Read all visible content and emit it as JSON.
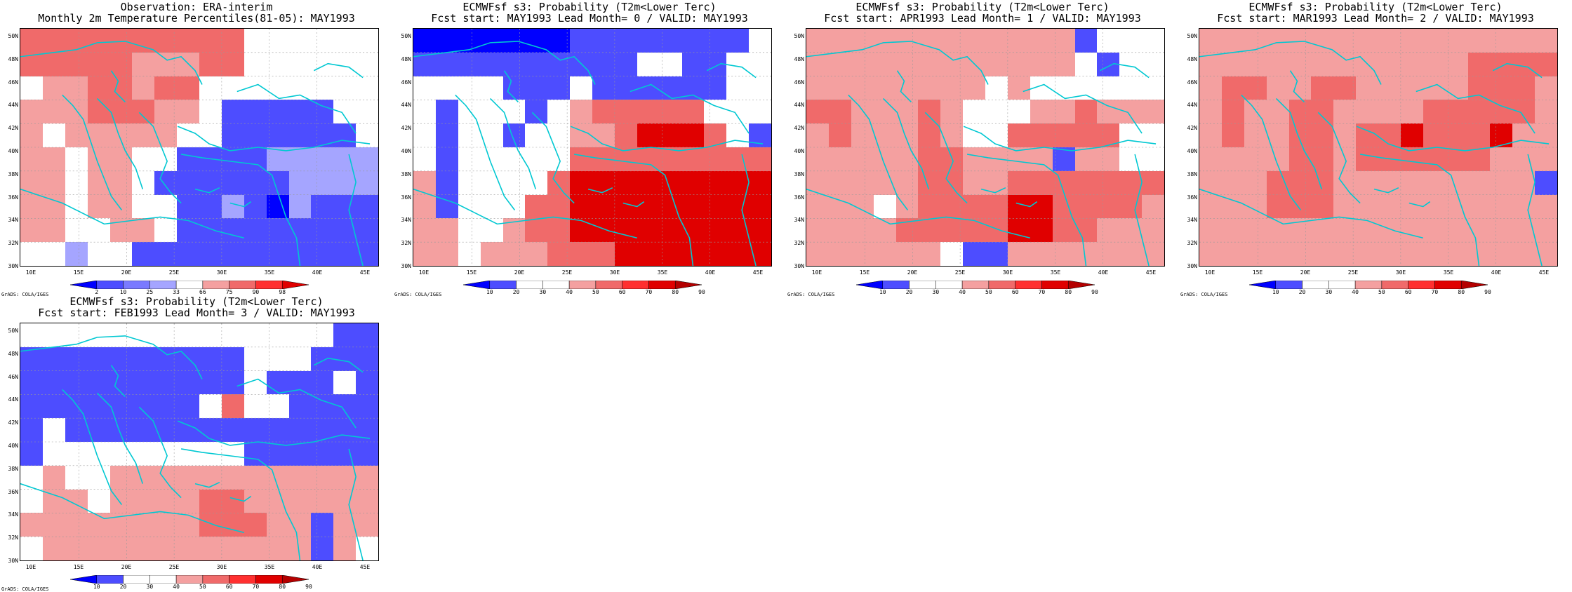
{
  "colors": {
    "blue3": "#0000ff",
    "blue2": "#4d4dff",
    "blue1": "#a5a5ff",
    "red1": "#f4a0a0",
    "red2": "#f06a6a",
    "red3": "#ff3030",
    "red4": "#e00000",
    "red5": "#b40000",
    "coast": "#00c8d2",
    "white": "#ffffff"
  },
  "axes": {
    "lat_labels": [
      "50N",
      "48N",
      "46N",
      "44N",
      "42N",
      "40N",
      "38N",
      "36N",
      "34N",
      "32N",
      "30N"
    ],
    "lon_labels": [
      "10E",
      "15E",
      "20E",
      "25E",
      "30E",
      "35E",
      "40E",
      "45E"
    ]
  },
  "footer": "GrADS: COLA/IGES",
  "panels": [
    {
      "title1": "Observation: ERA-interim",
      "title2": "Monthly 2m Temperature Percentiles(81-05): MAY1993",
      "colorbar": [
        "2",
        "10",
        "25",
        "33",
        "66",
        "75",
        "90",
        "98"
      ],
      "colorbar_colors": [
        "#0000ff",
        "#4d4dff",
        "#7a7aff",
        "#a5a5ff",
        "#ffffff",
        "#f4a0a0",
        "#f06a6a",
        "#ff3030",
        "#e00000"
      ],
      "grid_rows": [
        "RRRRRRRRRR000000",
        "RRRRRrrrRR000000",
        "0rrRRrRR00000000",
        "rrrRRRrr0BBBBB00",
        "r0rrrrr00BBBBBB0",
        "rr0rr00BBBBbbbbb",
        "rr0rr0BBBBBBbbbb",
        "rr0rr00BBbBXbBBB",
        "rr00rr0BBBBBBBBB",
        "00b00BBBBBBBBBBB"
      ]
    },
    {
      "title1": "ECMWFsf s3: Probability (T2m<Lower Terc)",
      "title2": "Fcst start: MAY1993  Lead Month= 0 / VALID: MAY1993",
      "colorbar": [
        "10",
        "20",
        "30",
        "40",
        "50",
        "60",
        "70",
        "80",
        "90"
      ],
      "colorbar_colors": [
        "#0000ff",
        "#4d4dff",
        "#ffffff",
        "#ffffff",
        "#f4a0a0",
        "#f06a6a",
        "#ff3030",
        "#e00000",
        "#b40000"
      ],
      "grid_rows": [
        "XXXXXXXBBBBBBBB0",
        "BBBBBBBBBB00BB00",
        "0000BBB0BBBBBB00",
        "0B000B0rRRRRR000",
        "0B00B00rrRDDDR0B",
        "0B00000RRRRRRRRR",
        "rB0000RDDDDDDDDD",
        "rB000RRDDDDDDDDD",
        "rr00rRRDDDDDDDDD",
        "rr0rrrRRRDDDDDDD"
      ]
    },
    {
      "title1": "ECMWFsf s3: Probability (T2m<Lower Terc)",
      "title2": "Fcst start: APR1993  Lead Month= 1 / VALID: MAY1993",
      "colorbar": [
        "10",
        "20",
        "30",
        "40",
        "50",
        "60",
        "70",
        "80",
        "90"
      ],
      "colorbar_colors": [
        "#0000ff",
        "#4d4dff",
        "#ffffff",
        "#ffffff",
        "#f4a0a0",
        "#f06a6a",
        "#ff3030",
        "#e00000",
        "#b40000"
      ],
      "grid_rows": [
        "rrrrrrrrrrrrB000",
        "rrrrrrrrrrrr0B00",
        "rrrrrrrr0r000000",
        "RRrrrRr000rrRrrr",
        "rRrrrRr00RRRRR00",
        "rrrrrRRrrrrBrr00",
        "rrrrrRRrrRRRRRRR",
        "rrr0rRRRRDDRRRRr",
        "rrrrRRRRRDDRRrrr",
        "rrrrrr0BBrrrrrrr"
      ]
    },
    {
      "title1": "ECMWFsf s3: Probability (T2m<Lower Terc)",
      "title2": "Fcst start: MAR1993  Lead Month= 2 / VALID: MAY1993",
      "colorbar": [
        "10",
        "20",
        "30",
        "40",
        "50",
        "60",
        "70",
        "80",
        "90"
      ],
      "colorbar_colors": [
        "#0000ff",
        "#4d4dff",
        "#ffffff",
        "#ffffff",
        "#f4a0a0",
        "#f06a6a",
        "#ff3030",
        "#e00000",
        "#b40000"
      ],
      "grid_rows": [
        "rrrrrrrrrrrrrrrr",
        "rrrrrrrrrrrrRRRR",
        "rRRrrRRrrrrrRRRr",
        "rRrrRRrrrrRRRRRr",
        "rRrrRRrRRDRRRDrr",
        "rrrrRRrRRRRRRrrr",
        "rrrRRRrrrrrrrrrB",
        "rrrRRRrrrrrrrrrr",
        "rrrrrrrrrrrrrrrr",
        "rrrrrrrrrrrrrrrr"
      ]
    },
    {
      "title1": "ECMWFsf s3: Probability (T2m<Lower Terc)",
      "title2": "Fcst start: FEB1993  Lead Month= 3 / VALID: MAY1993",
      "colorbar": [
        "10",
        "20",
        "30",
        "40",
        "50",
        "60",
        "70",
        "80",
        "90"
      ],
      "colorbar_colors": [
        "#0000ff",
        "#4d4dff",
        "#ffffff",
        "#ffffff",
        "#f4a0a0",
        "#f06a6a",
        "#ff3030",
        "#e00000",
        "#b40000"
      ],
      "grid_rows": [
        "00000000000000BB",
        "BBBBBBBBBB000BBB",
        "BBBBBBBBBB0BBB0B",
        "BBBBBBBB0R00BBBB",
        "B0BBBBBBBBBBBBBB",
        "B000000000BBBBBB",
        "0r00rrrrrrrrrrrr",
        "0rr0rrrrRRrrrrrr",
        "rrrrrrrrRRRrrBrr",
        "0rrrrrrrrrrrrBr0"
      ]
    }
  ]
}
